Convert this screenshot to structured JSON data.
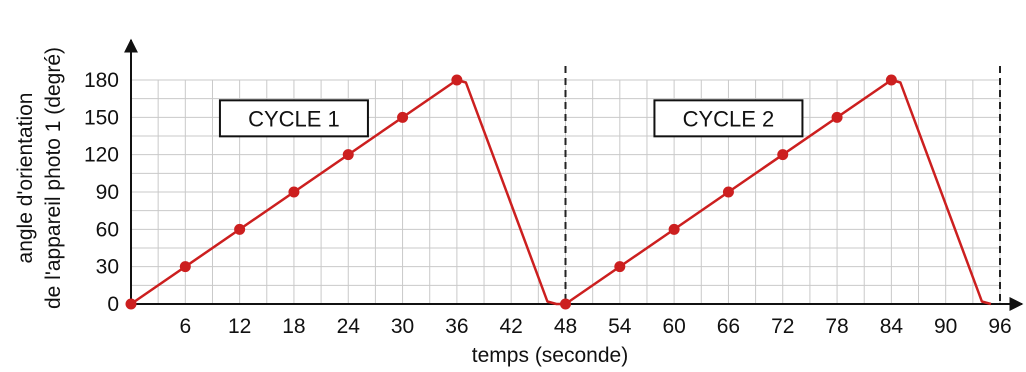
{
  "chart_data": {
    "type": "line",
    "xlabel": "temps (seconde)",
    "ylabel_line1": "angle d'orientation",
    "ylabel_line2": "de l'appareil photo 1 (degré)",
    "xticks": [
      6,
      12,
      18,
      24,
      30,
      36,
      42,
      48,
      54,
      60,
      66,
      72,
      78,
      84,
      90,
      96
    ],
    "yticks": [
      0,
      30,
      60,
      90,
      120,
      150,
      180
    ],
    "xlim": [
      0,
      96
    ],
    "ylim": [
      0,
      180
    ],
    "grid": true,
    "color": "#cc1f1f",
    "line": [
      {
        "x": 0,
        "y": 0
      },
      {
        "x": 36,
        "y": 180
      },
      {
        "x": 37,
        "y": 178
      },
      {
        "x": 46,
        "y": 2
      },
      {
        "x": 47,
        "y": 0
      },
      {
        "x": 48,
        "y": 0
      },
      {
        "x": 84,
        "y": 180
      },
      {
        "x": 85,
        "y": 178
      },
      {
        "x": 94,
        "y": 2
      },
      {
        "x": 95,
        "y": 0
      }
    ],
    "points": [
      {
        "x": 0,
        "y": 0
      },
      {
        "x": 6,
        "y": 30
      },
      {
        "x": 12,
        "y": 60
      },
      {
        "x": 18,
        "y": 90
      },
      {
        "x": 24,
        "y": 120
      },
      {
        "x": 30,
        "y": 150
      },
      {
        "x": 36,
        "y": 180
      },
      {
        "x": 48,
        "y": 0
      },
      {
        "x": 54,
        "y": 30
      },
      {
        "x": 60,
        "y": 60
      },
      {
        "x": 66,
        "y": 90
      },
      {
        "x": 72,
        "y": 120
      },
      {
        "x": 78,
        "y": 150
      },
      {
        "x": 84,
        "y": 180
      }
    ],
    "dashed_lines_x": [
      48,
      96
    ],
    "annotations": [
      {
        "text": "CYCLE 1",
        "x": 18,
        "y": 150
      },
      {
        "text": "CYCLE 2",
        "x": 66,
        "y": 150
      }
    ]
  }
}
